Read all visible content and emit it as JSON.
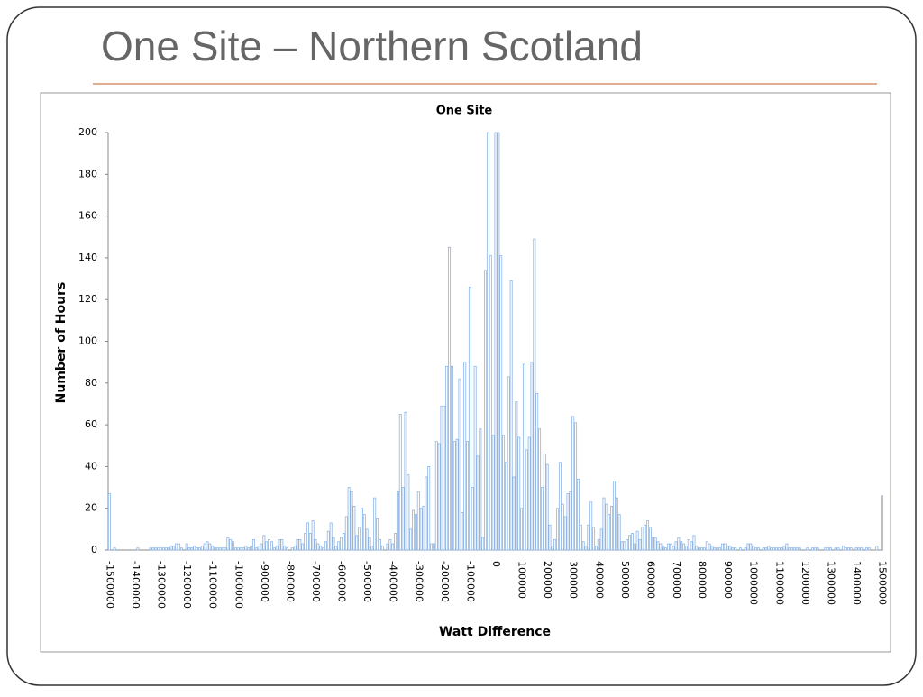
{
  "slide": {
    "title": "One Site – Northern Scotland"
  },
  "chart_data": {
    "type": "bar",
    "title": "One Site",
    "xlabel": "Watt Difference",
    "ylabel": "Number of Hours",
    "color": "#8eb4e3",
    "ylim": [
      0,
      200
    ],
    "yticks": [
      0,
      20,
      40,
      60,
      80,
      100,
      120,
      140,
      160,
      180,
      200
    ],
    "categories": [
      "-1500000",
      null,
      null,
      null,
      null,
      null,
      null,
      null,
      null,
      null,
      "-1400000",
      null,
      null,
      null,
      null,
      null,
      null,
      null,
      null,
      null,
      "-1300000",
      null,
      null,
      null,
      null,
      null,
      null,
      null,
      null,
      null,
      "-1200000",
      null,
      null,
      null,
      null,
      null,
      null,
      null,
      null,
      null,
      "-1100000",
      null,
      null,
      null,
      null,
      null,
      null,
      null,
      null,
      null,
      "-1000000",
      null,
      null,
      null,
      null,
      null,
      null,
      null,
      null,
      null,
      "-900000",
      null,
      null,
      null,
      null,
      null,
      null,
      null,
      null,
      null,
      "-800000",
      null,
      null,
      null,
      null,
      null,
      null,
      null,
      null,
      null,
      "-700000",
      null,
      null,
      null,
      null,
      null,
      null,
      null,
      null,
      null,
      "-600000",
      null,
      null,
      null,
      null,
      null,
      null,
      null,
      null,
      null,
      "-500000",
      null,
      null,
      null,
      null,
      null,
      null,
      null,
      null,
      null,
      "-400000",
      null,
      null,
      null,
      null,
      null,
      null,
      null,
      null,
      null,
      "-300000",
      null,
      null,
      null,
      null,
      null,
      null,
      null,
      null,
      null,
      "-200000",
      null,
      null,
      null,
      null,
      null,
      null,
      null,
      null,
      null,
      "-100000",
      null,
      null,
      null,
      null,
      null,
      null,
      null,
      null,
      null,
      "0",
      null,
      null,
      null,
      null,
      null,
      null,
      null,
      null,
      null,
      "100000",
      null,
      null,
      null,
      null,
      null,
      null,
      null,
      null,
      null,
      "200000",
      null,
      null,
      null,
      null,
      null,
      null,
      null,
      null,
      null,
      "300000",
      null,
      null,
      null,
      null,
      null,
      null,
      null,
      null,
      null,
      "400000",
      null,
      null,
      null,
      null,
      null,
      null,
      null,
      null,
      null,
      "500000",
      null,
      null,
      null,
      null,
      null,
      null,
      null,
      null,
      null,
      "600000",
      null,
      null,
      null,
      null,
      null,
      null,
      null,
      null,
      null,
      "700000",
      null,
      null,
      null,
      null,
      null,
      null,
      null,
      null,
      null,
      "800000",
      null,
      null,
      null,
      null,
      null,
      null,
      null,
      null,
      null,
      "900000",
      null,
      null,
      null,
      null,
      null,
      null,
      null,
      null,
      null,
      "1000000",
      null,
      null,
      null,
      null,
      null,
      null,
      null,
      null,
      null,
      "1100000",
      null,
      null,
      null,
      null,
      null,
      null,
      null,
      null,
      null,
      "1200000",
      null,
      null,
      null,
      null,
      null,
      null,
      null,
      null,
      null,
      "1300000",
      null,
      null,
      null,
      null,
      null,
      null,
      null,
      null,
      null,
      "1400000",
      null,
      null,
      null,
      null,
      null,
      null,
      null,
      null,
      null,
      "1500000"
    ],
    "values": [
      27,
      0,
      1,
      0,
      0,
      0,
      0,
      0,
      0,
      0,
      0,
      1,
      0,
      0,
      0,
      0,
      1,
      1,
      1,
      1,
      1,
      1,
      1,
      1,
      2,
      2,
      3,
      3,
      1,
      0,
      3,
      1,
      1,
      2,
      1,
      1,
      2,
      3,
      4,
      3,
      2,
      1,
      1,
      1,
      1,
      1,
      6,
      5,
      4,
      1,
      1,
      1,
      1,
      2,
      1,
      2,
      5,
      1,
      2,
      3,
      7,
      4,
      5,
      4,
      1,
      2,
      5,
      5,
      2,
      1,
      0,
      1,
      2,
      5,
      5,
      3,
      8,
      13,
      8,
      14,
      5,
      3,
      2,
      1,
      4,
      9,
      13,
      6,
      2,
      4,
      6,
      8,
      16,
      30,
      28,
      21,
      7,
      11,
      20,
      17,
      10,
      6,
      2,
      25,
      15,
      5,
      2,
      0,
      3,
      5,
      3,
      8,
      28,
      65,
      30,
      66,
      36,
      10,
      19,
      17,
      28,
      20,
      21,
      35,
      40,
      3,
      3,
      52,
      51,
      69,
      69,
      88,
      145,
      88,
      52,
      53,
      82,
      18,
      90,
      52,
      126,
      30,
      88,
      45,
      58,
      6,
      134,
      200,
      141,
      55,
      200,
      200,
      141,
      55,
      42,
      83,
      129,
      35,
      71,
      54,
      20,
      89,
      48,
      54,
      90,
      149,
      75,
      58,
      30,
      46,
      41,
      12,
      2,
      5,
      20,
      42,
      22,
      16,
      27,
      28,
      64,
      61,
      34,
      12,
      4,
      2,
      12,
      23,
      11,
      2,
      5,
      10,
      25,
      22,
      17,
      21,
      33,
      25,
      17,
      4,
      4,
      5,
      7,
      8,
      3,
      9,
      5,
      11,
      12,
      14,
      11,
      6,
      6,
      4,
      3,
      2,
      1,
      3,
      3,
      2,
      4,
      6,
      4,
      3,
      2,
      5,
      4,
      7,
      2,
      1,
      1,
      1,
      4,
      3,
      2,
      1,
      1,
      1,
      3,
      3,
      2,
      2,
      1,
      1,
      0,
      1,
      0,
      1,
      3,
      3,
      2,
      1,
      1,
      0,
      1,
      1,
      2,
      1,
      1,
      1,
      1,
      1,
      2,
      3,
      1,
      1,
      1,
      1,
      1,
      0,
      0,
      1,
      0,
      1,
      1,
      1,
      0,
      0,
      1,
      1,
      1,
      0,
      1,
      1,
      0,
      2,
      1,
      1,
      1,
      0,
      1,
      1,
      1,
      0,
      1,
      1,
      0,
      0,
      2,
      0,
      26
    ]
  }
}
